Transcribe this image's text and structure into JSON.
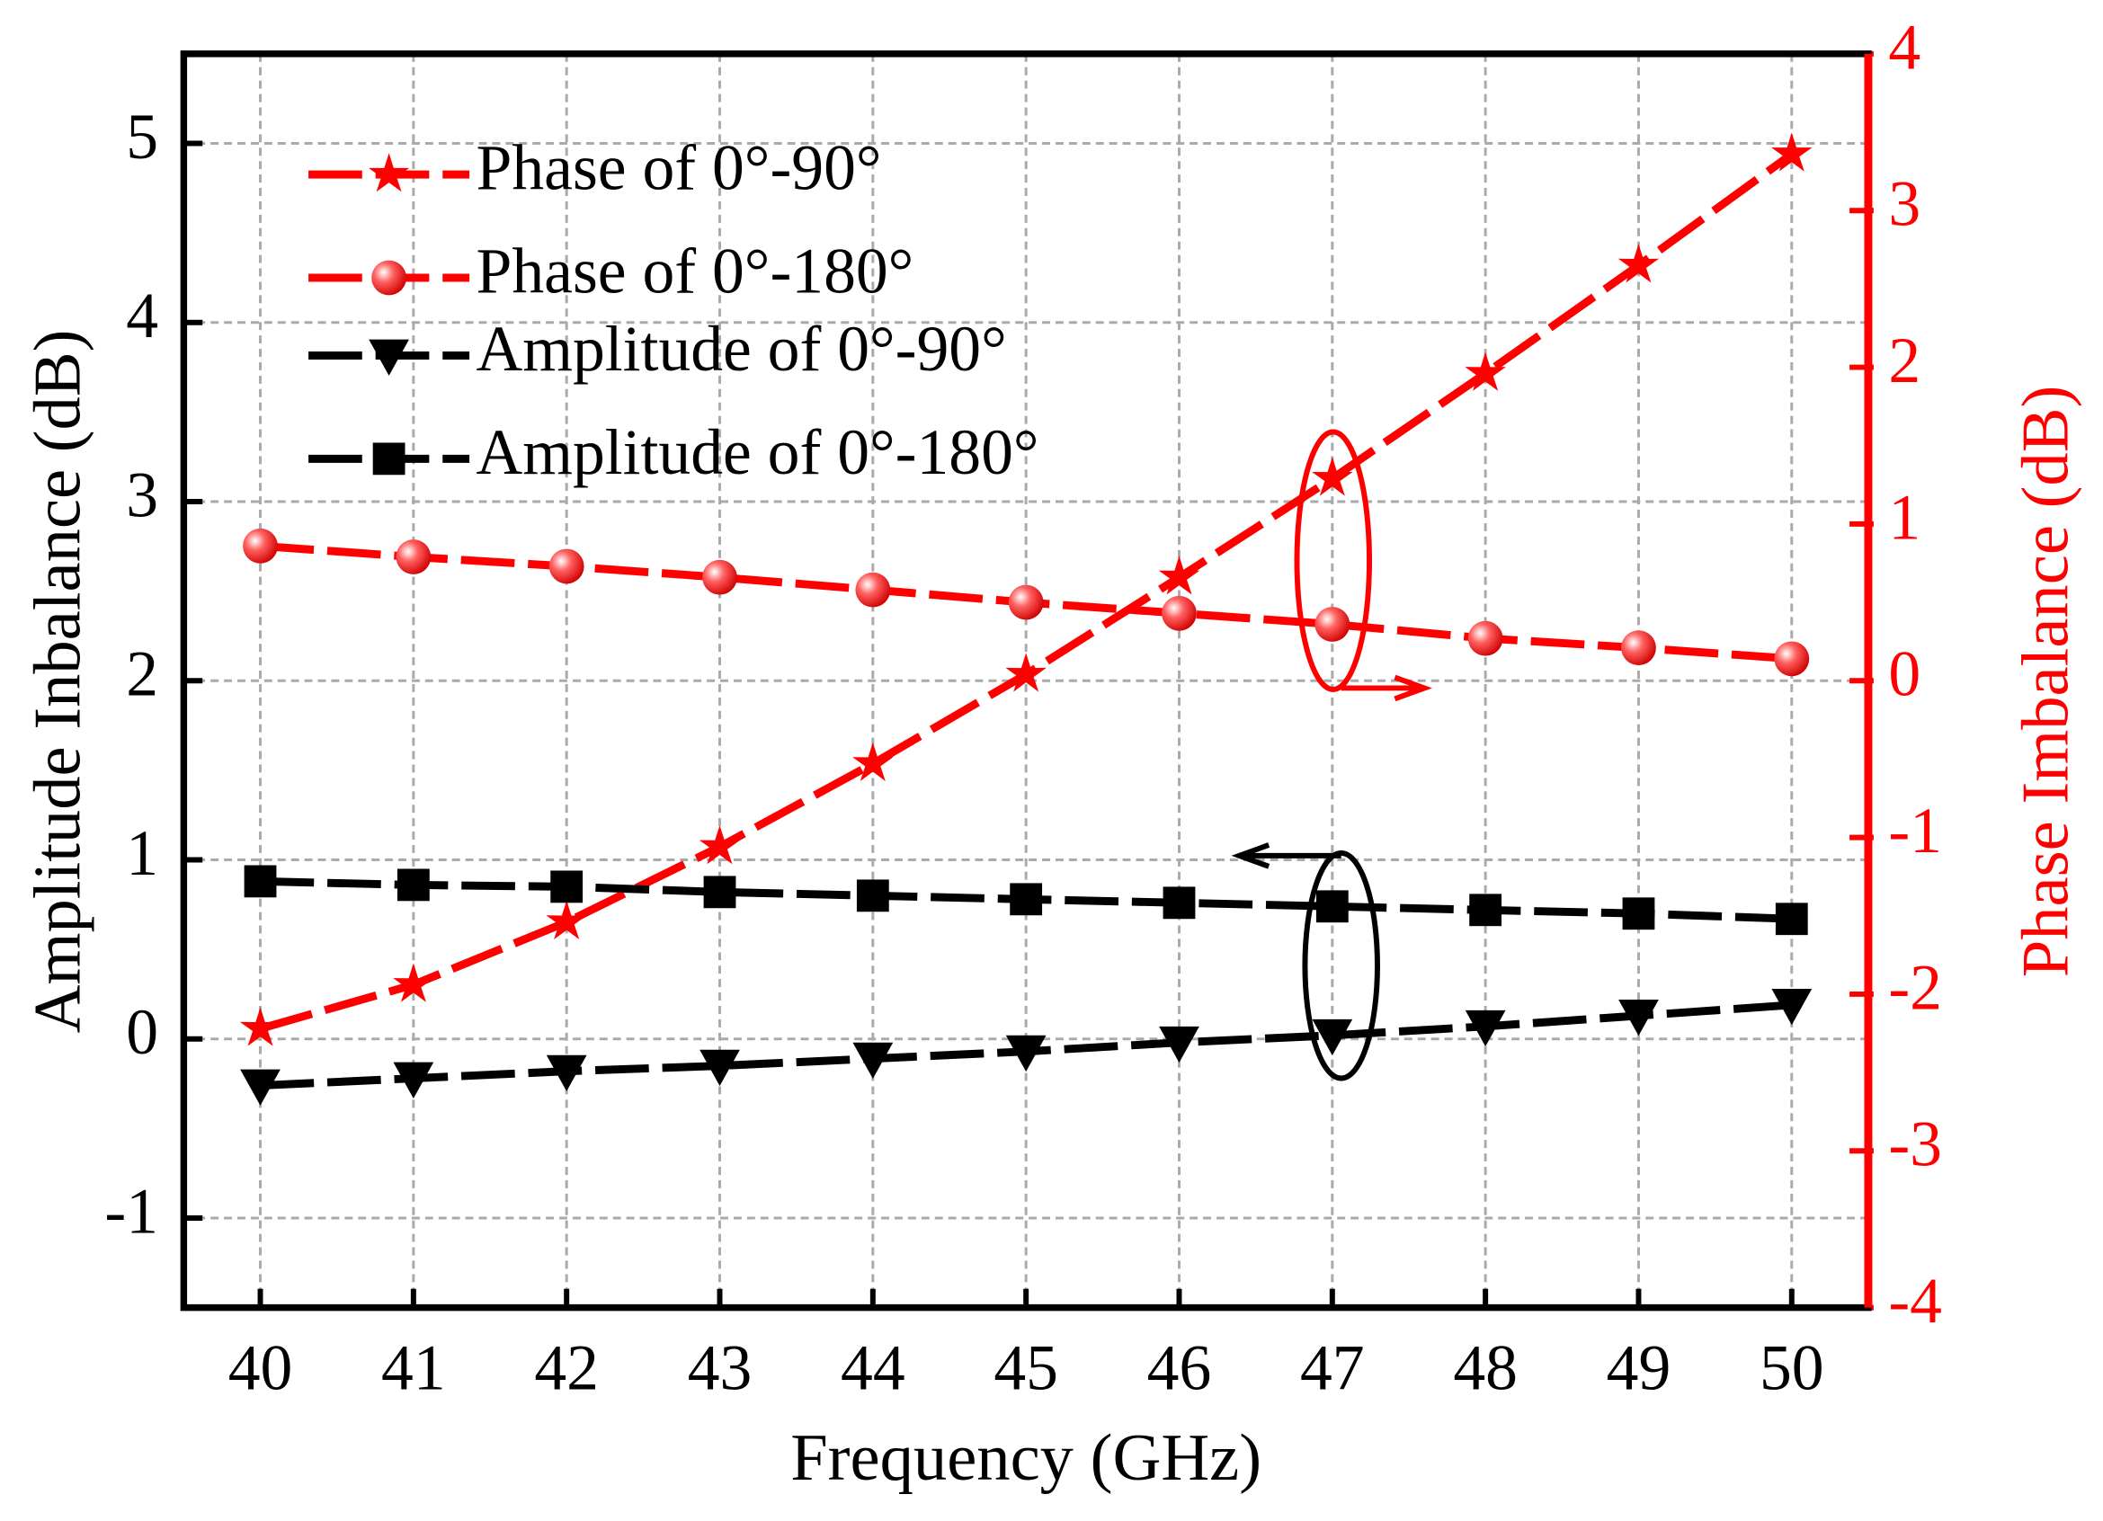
{
  "chart_data": {
    "type": "line",
    "x_label": "Frequency (GHz)",
    "y_label": "Amplitude Inbalance (dB)",
    "y2_label": "Phase Imbalance (dB)",
    "x": [
      40,
      41,
      42,
      43,
      44,
      45,
      46,
      47,
      48,
      49,
      50
    ],
    "xlim": [
      39.5,
      50.5
    ],
    "xticks": [
      40,
      41,
      42,
      43,
      44,
      45,
      46,
      47,
      48,
      49,
      50
    ],
    "ylim": [
      -1.5,
      5.5
    ],
    "yticks": [
      -1,
      0,
      1,
      2,
      3,
      4,
      5
    ],
    "y2lim": [
      -4,
      4
    ],
    "y2ticks": [
      -4,
      -3,
      -2,
      -1,
      0,
      1,
      2,
      3,
      4
    ],
    "grid": true,
    "legend": "upper left",
    "y2_color": "#ff0000",
    "series": [
      {
        "name": "Phase of 0°-90°",
        "color": "#ff0000",
        "marker": "star",
        "axis": "y2",
        "values": [
          -2.22,
          -1.94,
          -1.54,
          -1.06,
          -0.53,
          0.04,
          0.66,
          1.29,
          1.96,
          2.65,
          3.36
        ]
      },
      {
        "name": "Phase of 0°-180°",
        "color": "#ff0000",
        "marker": "circle",
        "axis": "y2",
        "values": [
          0.86,
          0.79,
          0.73,
          0.66,
          0.58,
          0.5,
          0.43,
          0.36,
          0.27,
          0.21,
          0.14
        ]
      },
      {
        "name": "Amplitude of 0°-90°",
        "color": "#000000",
        "marker": "triangle-down",
        "values": [
          -0.26,
          -0.22,
          -0.18,
          -0.15,
          -0.11,
          -0.07,
          -0.02,
          0.02,
          0.07,
          0.13,
          0.19
        ]
      },
      {
        "name": "Amplitude of 0°-180°",
        "color": "#000000",
        "marker": "square",
        "values": [
          0.88,
          0.86,
          0.85,
          0.82,
          0.8,
          0.78,
          0.76,
          0.74,
          0.72,
          0.7,
          0.67
        ]
      }
    ]
  }
}
